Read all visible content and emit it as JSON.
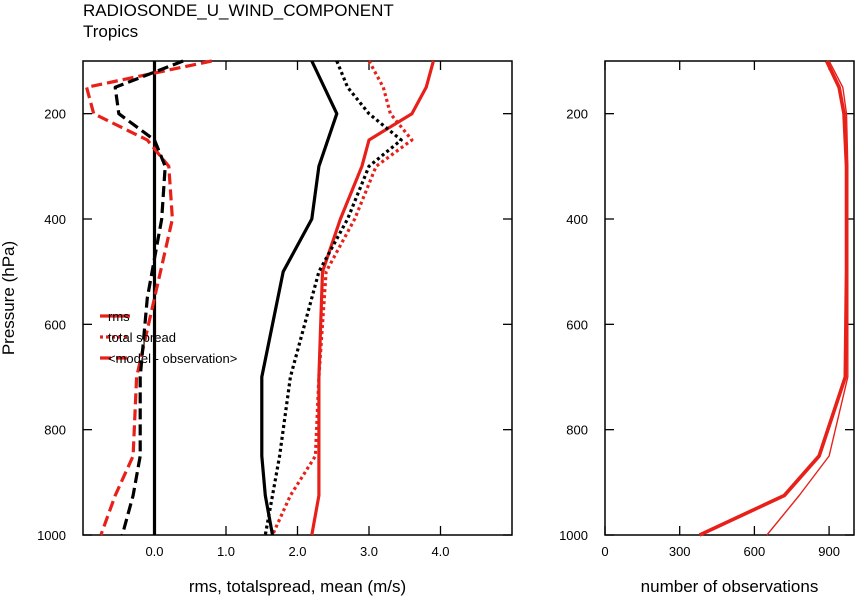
{
  "title": "RADIOSONDE_U_WIND_COMPONENT",
  "subtitle": "Tropics",
  "colors": {
    "red": "#e8201a",
    "black": "#000000"
  },
  "chart_data": [
    {
      "type": "line",
      "name": "left-panel",
      "xlabel": "rms, totalspread, mean (m/s)",
      "ylabel": "Pressure (hPa)",
      "xlim": [
        -1.0,
        5.0
      ],
      "ylim": [
        100,
        1000
      ],
      "y_inverted": true,
      "xticks": [
        0.0,
        1.0,
        2.0,
        3.0,
        4.0
      ],
      "xtick_labels": [
        "0.0",
        "1.0",
        "2.0",
        "3.0",
        "4.0"
      ],
      "yticks": [
        200,
        400,
        600,
        800,
        1000
      ],
      "ytick_labels": [
        "200",
        "400",
        "600",
        "800",
        "1000"
      ],
      "zero_line": true,
      "legend": {
        "placement": "middle-left",
        "entries": [
          {
            "label": "rms",
            "style": "solid"
          },
          {
            "label": "total spread",
            "style": "dotted"
          },
          {
            "label": "<model - observation>",
            "style": "dashed"
          }
        ]
      },
      "series": [
        {
          "color": "red",
          "style": "solid",
          "values": [
            [
              3.9,
              100
            ],
            [
              3.8,
              150
            ],
            [
              3.6,
              200
            ],
            [
              3.0,
              250
            ],
            [
              2.9,
              300
            ],
            [
              2.6,
              400
            ],
            [
              2.35,
              500
            ],
            [
              2.3,
              700
            ],
            [
              2.3,
              850
            ],
            [
              2.3,
              925
            ],
            [
              2.2,
              1000
            ]
          ]
        },
        {
          "color": "red",
          "style": "dotted",
          "values": [
            [
              3.0,
              100
            ],
            [
              3.2,
              150
            ],
            [
              3.3,
              200
            ],
            [
              3.6,
              250
            ],
            [
              3.1,
              300
            ],
            [
              2.8,
              400
            ],
            [
              2.4,
              500
            ],
            [
              2.3,
              700
            ],
            [
              2.25,
              850
            ],
            [
              1.9,
              925
            ],
            [
              1.65,
              1000
            ]
          ]
        },
        {
          "color": "red",
          "style": "dashed",
          "values": [
            [
              0.8,
              100
            ],
            [
              -0.95,
              150
            ],
            [
              -0.85,
              200
            ],
            [
              -0.1,
              250
            ],
            [
              0.2,
              300
            ],
            [
              0.25,
              400
            ],
            [
              0.0,
              550
            ],
            [
              -0.25,
              700
            ],
            [
              -0.3,
              850
            ],
            [
              -0.55,
              925
            ],
            [
              -0.75,
              1000
            ]
          ]
        },
        {
          "color": "black",
          "style": "solid",
          "values": [
            [
              2.2,
              100
            ],
            [
              2.55,
              200
            ],
            [
              2.3,
              300
            ],
            [
              2.2,
              400
            ],
            [
              1.8,
              500
            ],
            [
              1.5,
              700
            ],
            [
              1.5,
              850
            ],
            [
              1.55,
              925
            ],
            [
              1.65,
              1000
            ]
          ]
        },
        {
          "color": "black",
          "style": "dotted",
          "values": [
            [
              2.55,
              100
            ],
            [
              2.7,
              150
            ],
            [
              3.0,
              200
            ],
            [
              3.45,
              250
            ],
            [
              3.0,
              300
            ],
            [
              2.7,
              400
            ],
            [
              2.3,
              500
            ],
            [
              1.9,
              700
            ],
            [
              1.75,
              850
            ],
            [
              1.65,
              925
            ],
            [
              1.55,
              1000
            ]
          ]
        },
        {
          "color": "black",
          "style": "dashed",
          "values": [
            [
              0.4,
              100
            ],
            [
              -0.55,
              150
            ],
            [
              -0.5,
              200
            ],
            [
              0.0,
              250
            ],
            [
              0.15,
              300
            ],
            [
              0.1,
              400
            ],
            [
              -0.1,
              550
            ],
            [
              -0.2,
              700
            ],
            [
              -0.2,
              850
            ],
            [
              -0.3,
              925
            ],
            [
              -0.45,
              1000
            ]
          ]
        }
      ]
    },
    {
      "type": "line",
      "name": "right-panel",
      "xlabel": "number of observations",
      "ylabel": "",
      "xlim": [
        0,
        1000
      ],
      "ylim": [
        100,
        1000
      ],
      "y_inverted": true,
      "xticks": [
        0,
        300,
        600,
        900
      ],
      "xtick_labels": [
        "0",
        "300",
        "600",
        "900"
      ],
      "yticks": [
        200,
        400,
        600,
        800,
        1000
      ],
      "ytick_labels": [
        "200",
        "400",
        "600",
        "800",
        "1000"
      ],
      "series": [
        {
          "color": "red",
          "style": "thick",
          "values": [
            [
              890,
              100
            ],
            [
              940,
              150
            ],
            [
              960,
              200
            ],
            [
              970,
              300
            ],
            [
              970,
              500
            ],
            [
              965,
              700
            ],
            [
              860,
              850
            ],
            [
              720,
              925
            ],
            [
              380,
              1000
            ]
          ]
        },
        {
          "color": "red",
          "style": "thin",
          "values": [
            [
              900,
              100
            ],
            [
              955,
              150
            ],
            [
              970,
              200
            ],
            [
              975,
              300
            ],
            [
              975,
              500
            ],
            [
              975,
              700
            ],
            [
              900,
              850
            ],
            [
              780,
              925
            ],
            [
              650,
              1000
            ]
          ]
        }
      ]
    }
  ]
}
